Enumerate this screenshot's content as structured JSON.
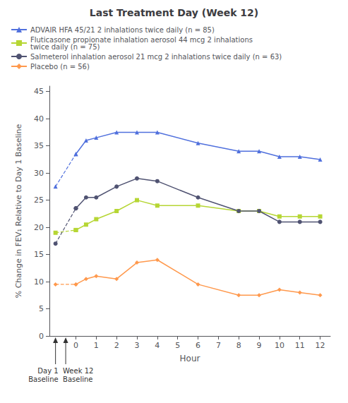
{
  "chart_data": {
    "type": "line",
    "title": "Last Treatment Day (Week 12)",
    "xlabel": "Hour",
    "ylabel": "% Change in FEV₁ Relative to Day 1 Baseline",
    "xlim": [
      -1.3,
      12.5
    ],
    "ylim": [
      0,
      46
    ],
    "xticks": [
      0,
      1,
      2,
      3,
      4,
      5,
      6,
      7,
      8,
      9,
      10,
      11,
      12
    ],
    "yticks": [
      0,
      5,
      10,
      15,
      20,
      25,
      30,
      35,
      40,
      45
    ],
    "grid": false,
    "legend": "upper left",
    "day1_x": -1.0,
    "series": [
      {
        "name": "ADVAIR HFA 45/21 2 inhalations twice daily (n = 85)",
        "x": [
          0,
          0.5,
          1,
          2,
          3,
          4,
          6,
          8,
          9,
          10,
          11,
          12
        ],
        "values": [
          33.5,
          36.0,
          36.5,
          37.5,
          37.5,
          37.5,
          35.5,
          34.0,
          34.0,
          33.0,
          33.0,
          32.5
        ],
        "day1_value": 27.5,
        "marker": "triangle",
        "line_style": "solid"
      },
      {
        "name": "Fluticasone propionate inhalation aerosol 44 mcg 2 inhalations\ntwice daily (n = 75)",
        "x": [
          0,
          0.5,
          1,
          2,
          3,
          4,
          6,
          8,
          9,
          10,
          11,
          12
        ],
        "values": [
          19.5,
          20.5,
          21.5,
          23.0,
          25.0,
          24.0,
          24.0,
          23.0,
          23.0,
          22.0,
          22.0,
          22.0
        ],
        "day1_value": 19.0,
        "marker": "square",
        "line_style": "solid"
      },
      {
        "name": "Salmeterol inhalation aerosol 21 mcg 2 inhalations twice daily (n = 63)",
        "x": [
          0,
          0.5,
          1,
          2,
          3,
          4,
          6,
          8,
          9,
          10,
          11,
          12
        ],
        "values": [
          23.5,
          25.5,
          25.5,
          27.5,
          29.0,
          28.5,
          25.5,
          23.0,
          23.0,
          21.0,
          21.0,
          21.0
        ],
        "day1_value": 17.0,
        "marker": "circle",
        "line_style": "solid"
      },
      {
        "name": "Placebo (n = 56)",
        "x": [
          0,
          0.5,
          1,
          2,
          3,
          4,
          6,
          8,
          9,
          10,
          11,
          12
        ],
        "values": [
          9.5,
          10.5,
          11.0,
          10.5,
          13.5,
          14.0,
          9.5,
          7.5,
          7.5,
          8.5,
          8.0,
          7.5
        ],
        "day1_value": 9.5,
        "marker": "diamond",
        "line_style": "solid"
      }
    ],
    "annotations": [
      {
        "text": "Day 1\nBaseline",
        "x": -1.0
      },
      {
        "text": "Week 12\nBaseline",
        "x": -0.5
      }
    ]
  }
}
